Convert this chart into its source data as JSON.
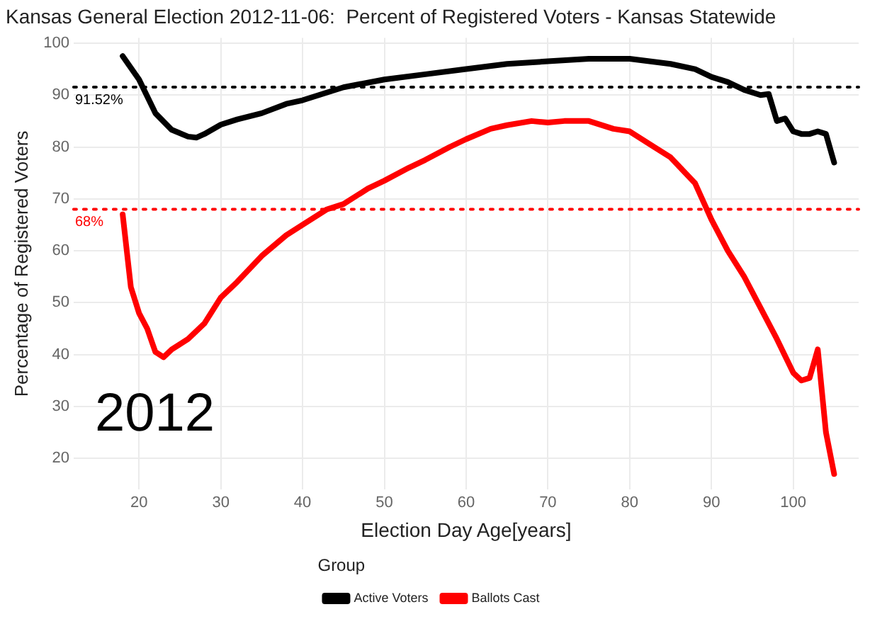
{
  "chart_data": {
    "type": "line",
    "title": "Kansas General Election 2012-11-06:  Percent of Registered Voters - Kansas Statewide",
    "xlabel": "Election Day Age[years]",
    "ylabel": "Percentage of Registered Voters",
    "legend_title": "Group",
    "legend": "bottom",
    "grid": true,
    "marker": "none",
    "line_style": "solid",
    "xlim": [
      12,
      108
    ],
    "xticks": [
      20,
      30,
      40,
      50,
      60,
      70,
      80,
      90,
      100
    ],
    "ylim": [
      14,
      101
    ],
    "yticks": [
      20,
      30,
      40,
      50,
      60,
      70,
      80,
      90,
      100
    ],
    "series": [
      {
        "name": "Active Voters",
        "color": "#000000",
        "x": [
          18,
          20,
          22,
          24,
          26,
          27,
          28,
          30,
          32,
          35,
          38,
          40,
          45,
          50,
          55,
          60,
          65,
          70,
          75,
          80,
          85,
          88,
          90,
          92,
          94,
          96,
          97,
          98,
          99,
          100,
          101,
          102,
          103,
          104,
          105
        ],
        "values": [
          97.5,
          93,
          86.5,
          83.3,
          82,
          81.8,
          82.5,
          84.3,
          85.3,
          86.5,
          88.3,
          89,
          91.5,
          93,
          94,
          95,
          96,
          96.5,
          97,
          97,
          96,
          95,
          93.5,
          92.5,
          91,
          90,
          90.2,
          85,
          85.5,
          83,
          82.5,
          82.5,
          83,
          82.5,
          77
        ]
      },
      {
        "name": "Ballots Cast",
        "color": "#ff0000",
        "x": [
          18,
          19,
          20,
          21,
          22,
          23,
          24,
          26,
          28,
          30,
          32,
          35,
          38,
          40,
          43,
          45,
          48,
          50,
          53,
          55,
          58,
          60,
          63,
          65,
          68,
          70,
          72,
          75,
          78,
          80,
          83,
          85,
          88,
          90,
          92,
          94,
          96,
          98,
          100,
          101,
          102,
          103,
          104,
          105
        ],
        "values": [
          67,
          53,
          48,
          45,
          40.5,
          39.5,
          41,
          43,
          46,
          51,
          54,
          59,
          63,
          65,
          68,
          69,
          72,
          73.5,
          76,
          77.5,
          80,
          81.5,
          83.5,
          84.2,
          85,
          84.7,
          85,
          85,
          83.5,
          83,
          80,
          78,
          73,
          66,
          60,
          55,
          49,
          43,
          36.5,
          35,
          35.5,
          41,
          25,
          17
        ]
      }
    ],
    "ref_lines": [
      {
        "axis": "y",
        "value": 91.52,
        "label": "91.52%",
        "color": "#000000",
        "line_style": "dotted"
      },
      {
        "axis": "y",
        "value": 68,
        "label": "68%",
        "color": "#ff0000",
        "line_style": "dotted"
      }
    ],
    "annotations": [
      "2012"
    ]
  }
}
